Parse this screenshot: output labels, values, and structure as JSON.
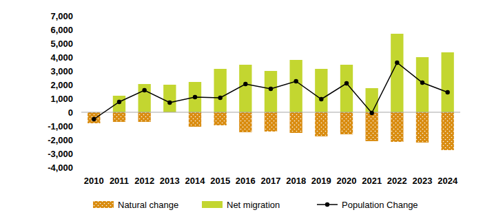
{
  "chart_data": {
    "type": "bar",
    "stacked": true,
    "grid": false,
    "legend": "bottom",
    "categories": [
      "2010",
      "2011",
      "2012",
      "2013",
      "2014",
      "2015",
      "2016",
      "2017",
      "2018",
      "2019",
      "2020",
      "2021",
      "2022",
      "2023",
      "2024"
    ],
    "series": [
      {
        "name": "Natural change",
        "type": "bar",
        "color": "#d98c10",
        "values": [
          -800,
          -700,
          -700,
          null,
          -1050,
          -950,
          -1450,
          -1400,
          -1500,
          -1750,
          -1600,
          -2100,
          -2150,
          -2200,
          -2750
        ]
      },
      {
        "name": "Net migration",
        "type": "bar",
        "color": "#c3d630",
        "values": [
          null,
          1200,
          2050,
          2000,
          2200,
          3150,
          3450,
          3000,
          3800,
          3150,
          3450,
          1750,
          5700,
          4000,
          4350
        ]
      },
      {
        "name": "Population Change",
        "type": "line",
        "color": "#000000",
        "marker": "circle",
        "values": [
          -500,
          750,
          1600,
          700,
          1100,
          1050,
          2050,
          1700,
          2250,
          950,
          2100,
          -50,
          3600,
          2150,
          1450
        ]
      }
    ],
    "ylim": [
      -4000,
      7000
    ],
    "yticks": [
      {
        "value": -4000,
        "label": "-4,000"
      },
      {
        "value": -3000,
        "label": "-3,000"
      },
      {
        "value": -2000,
        "label": "-2,000"
      },
      {
        "value": -1000,
        "label": "-1,000"
      },
      0,
      {
        "value": 1000,
        "label": "1,000"
      },
      {
        "value": 2000,
        "label": "2,000"
      },
      {
        "value": 3000,
        "label": "3,000"
      },
      {
        "value": 4000,
        "label": "4,000"
      },
      {
        "value": 5000,
        "label": "5,000"
      },
      {
        "value": 6000,
        "label": "6,000"
      },
      {
        "value": 7000,
        "label": "7,000"
      }
    ]
  }
}
